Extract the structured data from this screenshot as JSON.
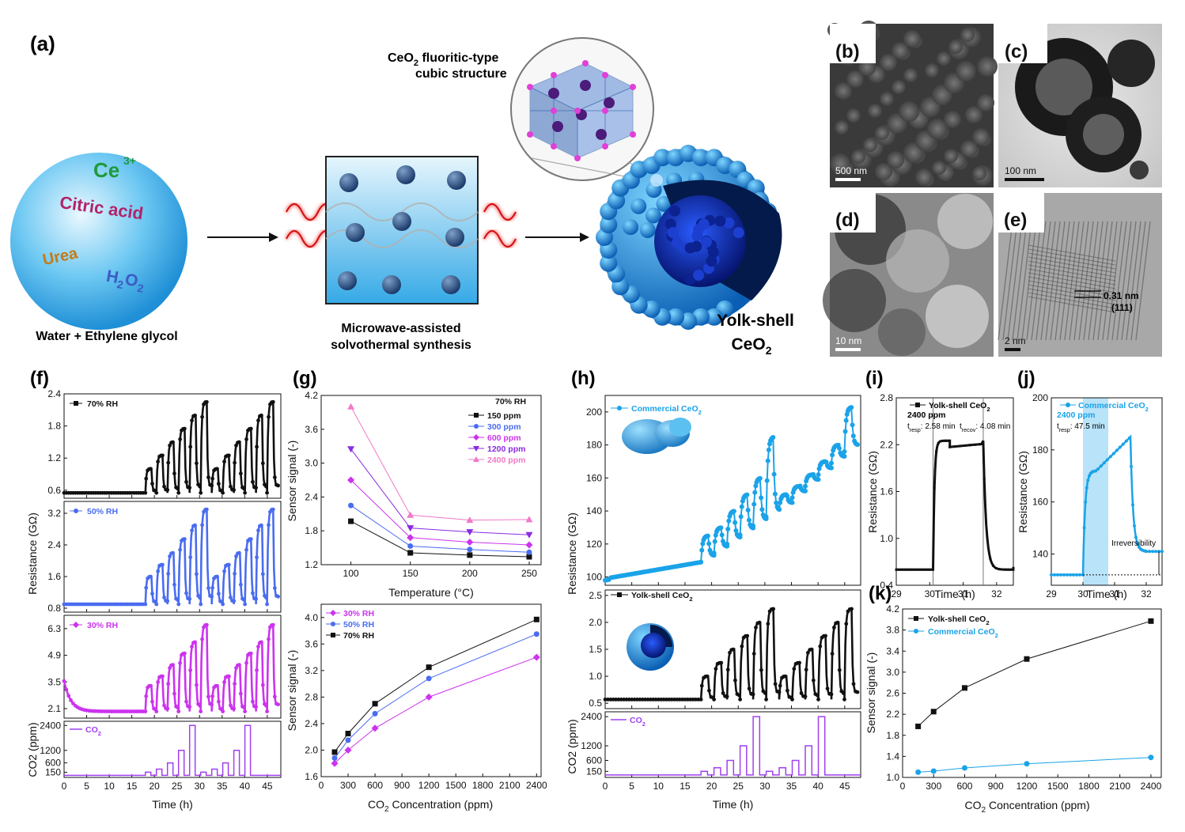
{
  "panels": {
    "a": {
      "label": "(a)",
      "sphere_texts": [
        "Ce",
        "3+",
        "Citric acid",
        "Urea",
        "H",
        "2",
        "O",
        "2"
      ],
      "sphere_caption": "Water + Ethylene glycol",
      "reactor_caption_1": "Microwave-assisted",
      "reactor_caption_2": "solvothermal synthesis",
      "structure_title_1": "CeO",
      "structure_title_sub": "2",
      "structure_title_2": " fluoritic-type",
      "structure_title_3": "cubic structure",
      "product_1": "Yolk-shell",
      "product_2": "CeO",
      "product_sub": "2"
    },
    "b": {
      "label": "(b)",
      "scale": "500 nm"
    },
    "c": {
      "label": "(c)",
      "scale": "100 nm"
    },
    "d": {
      "label": "(d)",
      "scale": "10 nm"
    },
    "e": {
      "label": "(e)",
      "scale": "2 nm",
      "d_spacing": "0.31 nm",
      "plane": "(111)"
    },
    "f": {
      "label": "(f)"
    },
    "g": {
      "label": "(g)"
    },
    "h": {
      "label": "(h)"
    },
    "i": {
      "label": "(i)"
    },
    "j": {
      "label": "(j)"
    },
    "k": {
      "label": "(k)"
    }
  },
  "colors": {
    "black": "#111111",
    "rh50": "#4a6cf0",
    "rh30": "#cc33ee",
    "co2": "#a040f0",
    "commercial": "#1aa3e8",
    "p150": "#111111",
    "p300": "#4a6cf0",
    "p600": "#cc33ee",
    "p1200": "#8a2be2",
    "p2400": "#f07ac8"
  },
  "chart_data": [
    {
      "id": "f",
      "type": "line",
      "description_of_axes": "shared x",
      "xlabel": "Time (h)",
      "x_ticks": [
        0,
        5,
        10,
        15,
        20,
        25,
        30,
        35,
        40,
        45
      ],
      "xlim": [
        0,
        48
      ],
      "ylabel_resistance": "Resistance (GΩ)",
      "ylabel_co2": "CO2 (ppm)",
      "subplots": [
        {
          "series": "70% RH",
          "y_ticks": [
            "0.6",
            "1.2",
            "1.8",
            "2.4"
          ],
          "ylim": [
            0.45,
            2.4
          ],
          "baseline": 0.55,
          "peaks": [
            1.0,
            1.25,
            1.5,
            1.75,
            2.0,
            2.25
          ]
        },
        {
          "series": "50% RH",
          "y_ticks": [
            "0.8",
            "1.6",
            "2.4",
            "3.2"
          ],
          "ylim": [
            0.7,
            3.5
          ],
          "baseline": 0.9,
          "peaks": [
            1.6,
            1.9,
            2.2,
            2.55,
            2.9,
            3.3
          ]
        },
        {
          "series": "30% RH",
          "y_ticks": [
            "2.1",
            "3.5",
            "4.9",
            "6.3"
          ],
          "ylim": [
            1.6,
            7.0
          ],
          "baseline": 1.95,
          "peaks": [
            3.3,
            3.8,
            4.4,
            5.0,
            5.6,
            6.5
          ]
        },
        {
          "series": "CO2",
          "y_ticks": [
            "150",
            "600",
            "1200",
            "2400"
          ],
          "ylim": [
            -100,
            2600
          ],
          "pulse_levels": [
            150,
            300,
            600,
            1200,
            2400,
            150,
            300,
            600,
            1200,
            2400
          ]
        }
      ]
    },
    {
      "id": "g-top",
      "type": "line",
      "title": "70% RH",
      "xlabel": "Temperature (°C)",
      "ylabel": "Sensor signal (-)",
      "x": [
        100,
        150,
        200,
        250
      ],
      "xlim": [
        75,
        260
      ],
      "x_ticks": [
        100,
        150,
        200,
        250
      ],
      "ylim": [
        1.2,
        4.2
      ],
      "y_ticks": [
        "1.2",
        "1.8",
        "2.4",
        "3.0",
        "3.6",
        "4.2"
      ],
      "series": [
        {
          "name": "150 ppm",
          "values": [
            1.97,
            1.41,
            1.37,
            1.34
          ]
        },
        {
          "name": "300 ppm",
          "values": [
            2.25,
            1.53,
            1.47,
            1.42
          ]
        },
        {
          "name": "600 ppm",
          "values": [
            2.7,
            1.68,
            1.6,
            1.55
          ]
        },
        {
          "name": "1200 ppm",
          "values": [
            3.25,
            1.85,
            1.78,
            1.73
          ]
        },
        {
          "name": "2400 ppm",
          "values": [
            4.0,
            2.08,
            1.99,
            2.0
          ]
        }
      ]
    },
    {
      "id": "g-bottom",
      "type": "line",
      "xlabel": "CO2 Concentration (ppm)",
      "ylabel": "Sensor signal (-)",
      "x": [
        150,
        300,
        600,
        1200,
        2400
      ],
      "xlim": [
        0,
        2450
      ],
      "x_ticks": [
        0,
        300,
        600,
        900,
        1200,
        1500,
        1800,
        2100,
        2400
      ],
      "ylim": [
        1.6,
        4.2
      ],
      "y_ticks": [
        "1.6",
        "2.0",
        "2.4",
        "2.8",
        "3.2",
        "3.6",
        "4.0"
      ],
      "series": [
        {
          "name": "30% RH",
          "values": [
            1.8,
            2.0,
            2.33,
            2.8,
            3.4
          ]
        },
        {
          "name": "50% RH",
          "values": [
            1.88,
            2.15,
            2.55,
            3.08,
            3.75
          ]
        },
        {
          "name": "70% RH",
          "values": [
            1.97,
            2.25,
            2.7,
            3.25,
            3.97
          ]
        }
      ]
    },
    {
      "id": "h",
      "type": "line",
      "xlabel": "Time (h)",
      "ylabel_resistance": "Resistance (GΩ)",
      "ylabel_co2": "CO2 (ppm)",
      "xlim": [
        0,
        48
      ],
      "x_ticks": [
        0,
        5,
        10,
        15,
        20,
        25,
        30,
        35,
        40,
        45
      ],
      "subplots": [
        {
          "series": "Commercial CeO2",
          "y_ticks": [
            "100",
            "120",
            "140",
            "160",
            "180",
            "200"
          ],
          "ylim": [
            95,
            210
          ],
          "baseline_start": 99,
          "baseline_end": 109,
          "peaks": [
            125,
            130,
            140,
            150,
            160,
            185,
            150,
            155,
            162,
            170,
            180,
            203
          ]
        },
        {
          "series": "Yolk-shell CeO2",
          "y_ticks": [
            "0.5",
            "1.0",
            "1.5",
            "2.0",
            "2.5"
          ],
          "ylim": [
            0.4,
            2.6
          ],
          "baseline": 0.57,
          "peaks": [
            1.0,
            1.25,
            1.5,
            1.75,
            2.0,
            2.25,
            1.0,
            1.25,
            1.5,
            1.75,
            2.0,
            2.25
          ]
        },
        {
          "series": "CO2",
          "y_ticks": [
            "150",
            "600",
            "1200",
            "2400"
          ],
          "ylim": [
            -100,
            2600
          ]
        }
      ]
    },
    {
      "id": "i",
      "type": "line",
      "xlabel": "Time (h)",
      "ylabel": "Resistance (GΩ)",
      "xlim": [
        29,
        32.5
      ],
      "x_ticks": [
        29,
        30,
        31,
        32
      ],
      "ylim": [
        0.4,
        2.8
      ],
      "y_ticks": [
        "0.4",
        "1.0",
        "1.6",
        "2.2",
        "2.8"
      ],
      "legend": "Yolk-shell CeO2",
      "conc": "2400 ppm",
      "t_resp_label": "t",
      "t_resp_sub": "resp",
      "t_resp_value": ": 2.58 min",
      "t_recov_label": "t",
      "t_recov_sub": "recov",
      "t_recov_value": ": 4.08 min",
      "gas_on": 30.1,
      "gas_off": 31.6,
      "baseline": 0.6,
      "plateau": 2.25
    },
    {
      "id": "j",
      "type": "line",
      "xlabel": "Time (h)",
      "ylabel": "Resistance (GΩ)",
      "xlim": [
        29,
        32.5
      ],
      "x_ticks": [
        29,
        30,
        31,
        32
      ],
      "ylim": [
        128,
        200
      ],
      "y_ticks": [
        "140",
        "160",
        "180",
        "200"
      ],
      "legend": "Commercial CeO2",
      "conc": "2400 ppm",
      "t_resp_label": "t",
      "t_resp_sub": "resp",
      "t_resp_value": ": 47.5 min",
      "annotation": "Irreversibility",
      "gas_on": 30.0,
      "gas_off": 30.8,
      "baseline": 132,
      "peak": 185,
      "final": 141
    },
    {
      "id": "k",
      "type": "line",
      "xlabel": "CO2 Concentration (ppm)",
      "ylabel": "Sensor signal (-)",
      "x": [
        150,
        300,
        600,
        1200,
        2400
      ],
      "xlim": [
        0,
        2500
      ],
      "x_ticks": [
        0,
        300,
        600,
        900,
        1200,
        1500,
        1800,
        2100,
        2400
      ],
      "ylim": [
        1.0,
        4.2
      ],
      "y_ticks": [
        "1.0",
        "1.4",
        "1.8",
        "2.2",
        "2.6",
        "3.0",
        "3.4",
        "3.8",
        "4.2"
      ],
      "series": [
        {
          "name": "Yolk-shell CeO2",
          "values": [
            1.97,
            2.25,
            2.7,
            3.25,
            3.97
          ]
        },
        {
          "name": "Commercial CeO2",
          "values": [
            1.1,
            1.12,
            1.18,
            1.26,
            1.38
          ]
        }
      ]
    }
  ]
}
